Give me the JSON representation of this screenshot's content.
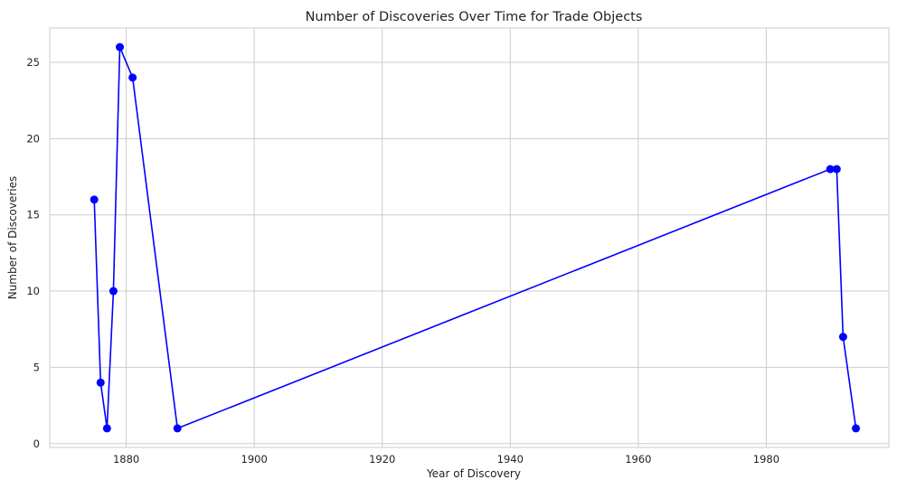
{
  "chart_data": {
    "type": "line",
    "title": "Number of Discoveries Over Time for Trade Objects",
    "xlabel": "Year of Discovery",
    "ylabel": "Number of Discoveries",
    "xlim": [
      1868.05,
      1999.15
    ],
    "ylim": [
      -0.25,
      27.25
    ],
    "xticks": [
      1880,
      1900,
      1920,
      1940,
      1960,
      1980
    ],
    "yticks": [
      0,
      5,
      10,
      15,
      20,
      25
    ],
    "grid": true,
    "legend": false,
    "series": [
      {
        "color": "#0000ff",
        "marker": "circle",
        "points": [
          {
            "x": 1875,
            "y": 16
          },
          {
            "x": 1876,
            "y": 4
          },
          {
            "x": 1877,
            "y": 1
          },
          {
            "x": 1878,
            "y": 10
          },
          {
            "x": 1879,
            "y": 26
          },
          {
            "x": 1881,
            "y": 24
          },
          {
            "x": 1888,
            "y": 1
          },
          {
            "x": 1990,
            "y": 18
          },
          {
            "x": 1991,
            "y": 18
          },
          {
            "x": 1992,
            "y": 7
          },
          {
            "x": 1994,
            "y": 1
          }
        ]
      }
    ]
  }
}
